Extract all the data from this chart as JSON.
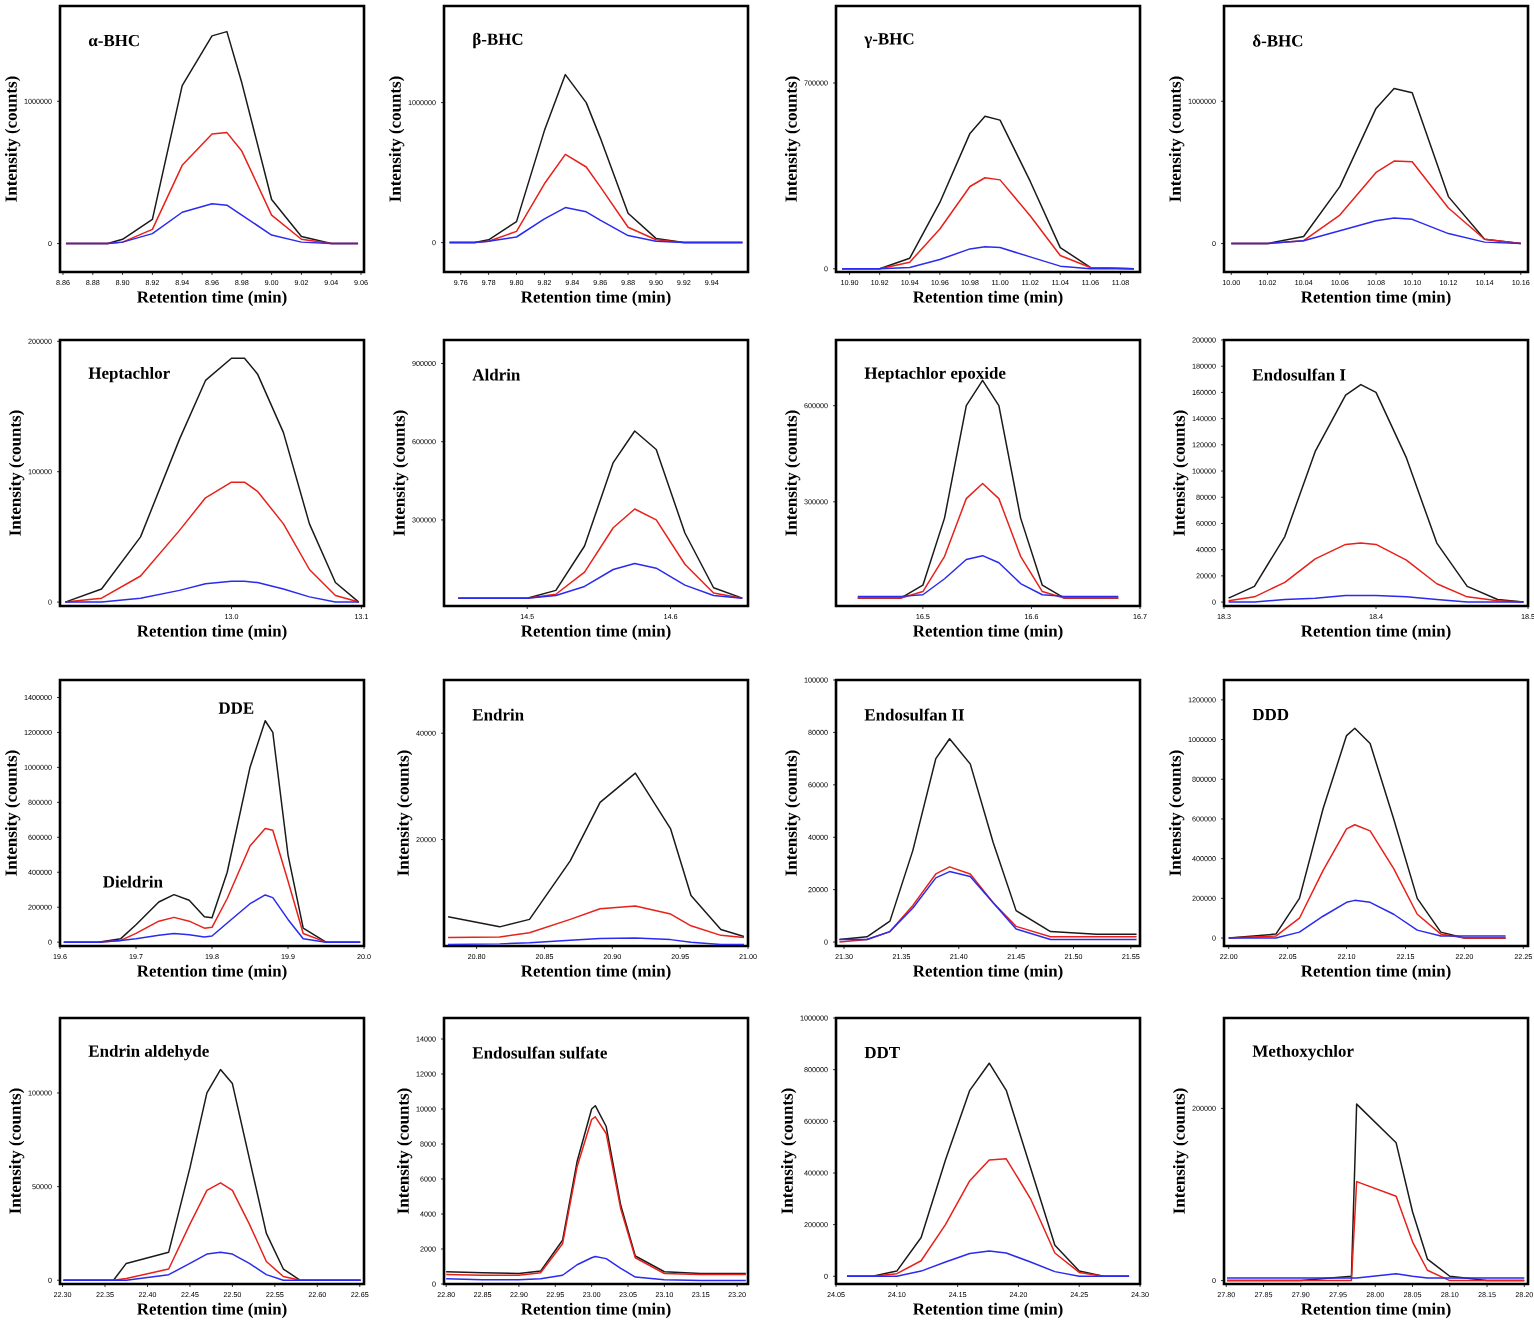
{
  "chart_data": [
    {
      "type": "line",
      "title": "α-BHC",
      "xlabel": "Retention time (min)",
      "ylabel": "Intensity (counts)",
      "xlim": [
        8.858,
        9.062
      ],
      "xticks": [
        8.86,
        8.88,
        {
          "value": 8.9,
          "label": "8.90"
        },
        8.92,
        8.94,
        8.96,
        8.98,
        {
          "value": 9,
          "label": "9.00"
        },
        9.02,
        9.04,
        9.06
      ],
      "ylim": [
        -200000,
        1670000
      ],
      "yticks": [
        0,
        1000000
      ],
      "x": [
        8.862,
        8.89,
        8.9,
        8.92,
        8.94,
        8.96,
        8.97,
        8.98,
        9.0,
        9.02,
        9.04,
        9.058
      ],
      "series": [
        {
          "color": "#1a1a1a",
          "values": [
            0,
            0,
            30000,
            170000,
            1110000,
            1460000,
            1490000,
            1130000,
            310000,
            50000,
            0,
            0
          ]
        },
        {
          "color": "#e8201a",
          "values": [
            0,
            0,
            10000,
            100000,
            550000,
            770000,
            780000,
            650000,
            200000,
            30000,
            0,
            0
          ]
        },
        {
          "color": "#2a2af0",
          "values": [
            0,
            0,
            10000,
            70000,
            220000,
            280000,
            270000,
            200000,
            60000,
            10000,
            0,
            0
          ]
        }
      ]
    },
    {
      "type": "line",
      "title": "β-BHC",
      "xlabel": "Retention time (min)",
      "ylabel": "Intensity (counts)",
      "xlim": [
        9.748,
        9.966
      ],
      "xticks": [
        9.76,
        9.78,
        {
          "value": 9.8,
          "label": "9.80"
        },
        9.82,
        9.84,
        9.86,
        9.88,
        {
          "value": 9.9,
          "label": "9.90"
        },
        9.92,
        9.94
      ],
      "ylim": [
        -210000,
        1690000
      ],
      "yticks": [
        0,
        1000000
      ],
      "x": [
        9.752,
        9.77,
        9.78,
        9.8,
        9.82,
        9.835,
        9.85,
        9.86,
        9.88,
        9.9,
        9.92,
        9.962
      ],
      "series": [
        {
          "color": "#1a1a1a",
          "values": [
            0,
            0,
            20000,
            150000,
            800000,
            1200000,
            1000000,
            750000,
            210000,
            30000,
            0,
            0
          ]
        },
        {
          "color": "#e8201a",
          "values": [
            0,
            0,
            10000,
            80000,
            420000,
            630000,
            540000,
            400000,
            110000,
            20000,
            0,
            0
          ]
        },
        {
          "color": "#2a2af0",
          "values": [
            0,
            0,
            10000,
            40000,
            170000,
            250000,
            220000,
            160000,
            50000,
            10000,
            0,
            0
          ]
        }
      ]
    },
    {
      "type": "line",
      "title": "γ-BHC",
      "xlabel": "Retention time (min)",
      "ylabel": "Intensity (counts)",
      "xlim": [
        10.891,
        11.093
      ],
      "xticks": [
        {
          "value": 10.9,
          "label": "10.90"
        },
        10.92,
        10.94,
        10.96,
        10.98,
        {
          "value": 11,
          "label": "11.00"
        },
        11.02,
        11.04,
        11.06,
        11.08
      ],
      "ylim": [
        -12000,
        990000
      ],
      "yticks": [
        0,
        700000
      ],
      "x": [
        10.895,
        10.92,
        10.94,
        10.96,
        10.98,
        10.99,
        11.0,
        11.02,
        11.04,
        11.06,
        11.089
      ],
      "series": [
        {
          "color": "#1a1a1a",
          "values": [
            0,
            0,
            40000,
            250000,
            510000,
            575000,
            560000,
            330000,
            80000,
            5000,
            0
          ]
        },
        {
          "color": "#e8201a",
          "values": [
            0,
            0,
            25000,
            150000,
            310000,
            343000,
            335000,
            200000,
            50000,
            5000,
            0
          ]
        },
        {
          "color": "#2a2af0",
          "values": [
            0,
            0,
            5000,
            35000,
            75000,
            83000,
            80000,
            45000,
            10000,
            0,
            0
          ]
        }
      ]
    },
    {
      "type": "line",
      "title": "δ-BHC",
      "xlabel": "Retention time (min)",
      "ylabel": "Intensity (counts)",
      "xlim": [
        9.996,
        10.164
      ],
      "xticks": [
        {
          "value": 10,
          "label": "10.00"
        },
        10.02,
        10.04,
        10.06,
        10.08,
        {
          "value": 10.1,
          "label": "10.10"
        },
        10.12,
        10.14,
        10.16
      ],
      "ylim": [
        -200000,
        1670000
      ],
      "yticks": [
        0,
        1000000
      ],
      "x": [
        10.0,
        10.02,
        10.04,
        10.06,
        10.08,
        10.09,
        10.1,
        10.12,
        10.14,
        10.16
      ],
      "series": [
        {
          "color": "#1a1a1a",
          "values": [
            0,
            0,
            50000,
            400000,
            950000,
            1090000,
            1060000,
            330000,
            30000,
            0
          ]
        },
        {
          "color": "#e8201a",
          "values": [
            0,
            0,
            20000,
            200000,
            500000,
            580000,
            575000,
            250000,
            30000,
            0
          ]
        },
        {
          "color": "#2a2af0",
          "values": [
            0,
            0,
            20000,
            90000,
            160000,
            180000,
            170000,
            70000,
            10000,
            0
          ]
        }
      ]
    },
    {
      "type": "line",
      "title": "Heptachlor",
      "xlabel": "Retention time (min)",
      "ylabel": "Intensity (counts)",
      "xlim": [
        12.868,
        13.102
      ],
      "xticks": [
        {
          "value": 13,
          "label": "13.0"
        },
        13.1
      ],
      "ylim": [
        -3000,
        201000
      ],
      "yticks": [
        0,
        100000,
        200000
      ],
      "x": [
        12.872,
        12.9,
        12.93,
        12.96,
        12.98,
        13.0,
        13.01,
        13.02,
        13.04,
        13.06,
        13.08,
        13.098
      ],
      "series": [
        {
          "color": "#1a1a1a",
          "values": [
            0,
            10000,
            50000,
            125000,
            170000,
            187000,
            187000,
            175000,
            130000,
            60000,
            15000,
            0
          ]
        },
        {
          "color": "#e8201a",
          "values": [
            0,
            3000,
            20000,
            55000,
            80000,
            92000,
            92000,
            85000,
            60000,
            25000,
            5000,
            0
          ]
        },
        {
          "color": "#2a2af0",
          "values": [
            0,
            0,
            3000,
            9000,
            14000,
            16000,
            16000,
            15000,
            10000,
            4000,
            0,
            0
          ]
        }
      ]
    },
    {
      "type": "line",
      "title": "Aldrin",
      "xlabel": "Retention time (min)",
      "ylabel": "Intensity (counts)",
      "xlim": [
        14.442,
        14.654
      ],
      "xticks": [
        14.5,
        14.6
      ],
      "ylim": [
        -30000,
        990000
      ],
      "yticks": [
        300000,
        600000,
        900000
      ],
      "x": [
        14.452,
        14.5,
        14.52,
        14.54,
        14.56,
        14.575,
        14.59,
        14.61,
        14.63,
        14.65
      ],
      "series": [
        {
          "color": "#1a1a1a",
          "values": [
            0,
            0,
            30000,
            200000,
            520000,
            641000,
            570000,
            250000,
            40000,
            0
          ]
        },
        {
          "color": "#e8201a",
          "values": [
            0,
            0,
            15000,
            100000,
            270000,
            342000,
            300000,
            130000,
            20000,
            0
          ]
        },
        {
          "color": "#2a2af0",
          "values": [
            0,
            0,
            10000,
            45000,
            110000,
            133000,
            115000,
            50000,
            10000,
            0
          ]
        }
      ]
    },
    {
      "type": "line",
      "title": "Heptachlor epoxide",
      "xlabel": "Retention time (min)",
      "ylabel": "Intensity (counts)",
      "xlim": [
        16.42,
        16.7
      ],
      "xticks": [
        16.5,
        16.6,
        16.7
      ],
      "ylim": [
        -25000,
        805000
      ],
      "yticks": [
        300000,
        600000
      ],
      "x": [
        16.44,
        16.48,
        16.5,
        16.52,
        16.54,
        16.555,
        16.57,
        16.59,
        16.61,
        16.63,
        16.68
      ],
      "series": [
        {
          "color": "#1a1a1a",
          "values": [
            0,
            0,
            40000,
            250000,
            600000,
            679000,
            600000,
            250000,
            40000,
            0,
            0
          ]
        },
        {
          "color": "#e8201a",
          "values": [
            0,
            0,
            20000,
            130000,
            310000,
            357000,
            310000,
            130000,
            20000,
            0,
            0
          ]
        },
        {
          "color": "#2a2af0",
          "values": [
            5000,
            5000,
            10000,
            60000,
            120000,
            132000,
            110000,
            45000,
            10000,
            5000,
            5000
          ]
        }
      ]
    },
    {
      "type": "line",
      "title": "Endosulfan I",
      "xlabel": "Retention time (min)",
      "ylabel": "Intensity (counts)",
      "xlim": [
        18.3,
        18.5
      ],
      "xticks": [
        18.3,
        18.4,
        18.5
      ],
      "ylim": [
        -3000,
        200000
      ],
      "yticks": [
        0,
        20000,
        40000,
        60000,
        80000,
        100000,
        120000,
        140000,
        160000,
        180000,
        200000
      ],
      "x": [
        18.303,
        18.32,
        18.34,
        18.36,
        18.38,
        18.39,
        18.4,
        18.42,
        18.44,
        18.46,
        18.48,
        18.497
      ],
      "series": [
        {
          "color": "#1a1a1a",
          "values": [
            3000,
            12000,
            50000,
            115000,
            158000,
            166000,
            160000,
            110000,
            45000,
            12000,
            2000,
            0
          ]
        },
        {
          "color": "#e8201a",
          "values": [
            1000,
            4000,
            15000,
            33000,
            44000,
            45000,
            44000,
            32000,
            14000,
            4000,
            1000,
            0
          ]
        },
        {
          "color": "#2a2af0",
          "values": [
            0,
            0,
            2000,
            3000,
            5000,
            5000,
            5000,
            4000,
            2000,
            0,
            0,
            0
          ]
        }
      ]
    },
    {
      "type": "line",
      "xlabel": "Retention time (min)",
      "ylabel": "Intensity (counts)",
      "xlim": [
        19.6,
        20.0
      ],
      "xticks": [
        19.6,
        19.7,
        19.8,
        19.9,
        {
          "value": 20,
          "label": "20.0"
        }
      ],
      "ylim": [
        -22000,
        1500000
      ],
      "yticks": [
        0,
        200000,
        400000,
        600000,
        800000,
        1000000,
        1200000,
        1400000
      ],
      "x": [
        19.605,
        19.65,
        19.68,
        19.7,
        19.73,
        19.75,
        19.77,
        19.79,
        19.8,
        19.82,
        19.85,
        19.87,
        19.88,
        19.9,
        19.92,
        19.95,
        19.995
      ],
      "series": [
        {
          "color": "#1a1a1a",
          "values": [
            0,
            0,
            20000,
            100000,
            230000,
            272000,
            240000,
            145000,
            140000,
            400000,
            1000000,
            1267000,
            1200000,
            500000,
            80000,
            0,
            0
          ]
        },
        {
          "color": "#e8201a",
          "values": [
            0,
            0,
            10000,
            50000,
            120000,
            142000,
            120000,
            80000,
            85000,
            250000,
            550000,
            650000,
            640000,
            350000,
            50000,
            0,
            0
          ]
        },
        {
          "color": "#2a2af0",
          "values": [
            0,
            0,
            10000,
            20000,
            40000,
            50000,
            42000,
            30000,
            35000,
            110000,
            220000,
            270000,
            255000,
            130000,
            20000,
            0,
            0
          ]
        }
      ],
      "annotations": [
        {
          "text": "Dieldrin",
          "x": 19.75,
          "y": 272000
        },
        {
          "text": "DDE",
          "x": 19.87,
          "y": 1267000
        }
      ]
    },
    {
      "type": "line",
      "title": "Endrin",
      "xlabel": "Retention time (min)",
      "ylabel": "Intensity (counts)",
      "xlim": [
        20.776,
        21.0
      ],
      "xticks": [
        {
          "value": 20.8,
          "label": "20.80"
        },
        20.85,
        {
          "value": 20.9,
          "label": "20.90"
        },
        20.95,
        {
          "value": 21,
          "label": "21.00"
        }
      ],
      "ylim": [
        0,
        50000
      ],
      "yticks": [
        20000,
        40000
      ],
      "x": [
        20.779,
        20.817,
        20.839,
        20.869,
        20.891,
        20.917,
        20.943,
        20.958,
        20.98,
        20.997
      ],
      "series": [
        {
          "color": "#1a1a1a",
          "values": [
            5500,
            3600,
            5000,
            16000,
            27000,
            32500,
            22000,
            9500,
            3100,
            1800
          ]
        },
        {
          "color": "#e8201a",
          "values": [
            1600,
            1700,
            2500,
            5000,
            7000,
            7500,
            6000,
            3800,
            2000,
            1600
          ]
        },
        {
          "color": "#2a2af0",
          "values": [
            300,
            400,
            600,
            1100,
            1400,
            1500,
            1200,
            700,
            300,
            300
          ]
        }
      ]
    },
    {
      "type": "line",
      "title": "Endosulfan II",
      "xlabel": "Retention time (min)",
      "ylabel": "Intensity (counts)",
      "xlim": [
        21.293,
        21.558
      ],
      "xticks": [
        {
          "value": 21.3,
          "label": "21.30"
        },
        21.35,
        {
          "value": 21.4,
          "label": "21.40"
        },
        21.45,
        {
          "value": 21.5,
          "label": "21.50"
        },
        21.55
      ],
      "ylim": [
        -1500,
        100000
      ],
      "yticks": [
        0,
        20000,
        40000,
        60000,
        80000,
        100000
      ],
      "x": [
        21.296,
        21.32,
        21.34,
        21.36,
        21.38,
        21.392,
        21.41,
        21.43,
        21.45,
        21.48,
        21.52,
        21.555
      ],
      "series": [
        {
          "color": "#1a1a1a",
          "values": [
            1000,
            2000,
            8000,
            35000,
            70000,
            77600,
            68000,
            38000,
            12000,
            4000,
            3000,
            3000
          ]
        },
        {
          "color": "#e8201a",
          "values": [
            0,
            1000,
            4000,
            14000,
            26000,
            28700,
            26000,
            15000,
            6000,
            2000,
            2000,
            2000
          ]
        },
        {
          "color": "#2a2af0",
          "values": [
            1000,
            1000,
            4000,
            13000,
            24500,
            26900,
            25000,
            15000,
            5000,
            1000,
            1000,
            1000
          ]
        }
      ]
    },
    {
      "type": "line",
      "title": "DDD",
      "xlabel": "Retention time (min)",
      "ylabel": "Intensity (counts)",
      "xlim": [
        21.996,
        22.254
      ],
      "xticks": [
        {
          "value": 22,
          "label": "22.00"
        },
        22.05,
        {
          "value": 22.1,
          "label": "22.10"
        },
        22.15,
        {
          "value": 22.2,
          "label": "22.20"
        },
        22.25
      ],
      "ylim": [
        -40000,
        1300000
      ],
      "yticks": [
        0,
        200000,
        400000,
        600000,
        800000,
        1000000,
        1200000
      ],
      "x": [
        22.0,
        22.04,
        22.06,
        22.08,
        22.1,
        22.107,
        22.12,
        22.14,
        22.16,
        22.18,
        22.2,
        22.235
      ],
      "series": [
        {
          "color": "#1a1a1a",
          "values": [
            0,
            20000,
            200000,
            650000,
            1020000,
            1057000,
            980000,
            600000,
            200000,
            30000,
            0,
            0
          ]
        },
        {
          "color": "#e8201a",
          "values": [
            0,
            10000,
            100000,
            340000,
            550000,
            571000,
            540000,
            350000,
            120000,
            20000,
            0,
            0
          ]
        },
        {
          "color": "#2a2af0",
          "values": [
            0,
            0,
            30000,
            110000,
            180000,
            190000,
            180000,
            120000,
            40000,
            10000,
            10000,
            10000
          ]
        }
      ]
    },
    {
      "type": "line",
      "title": "Endrin aldehyde",
      "xlabel": "Retention time (min)",
      "ylabel": "Intensity (counts)",
      "xlim": [
        22.297,
        22.655
      ],
      "xticks": [
        {
          "value": 22.3,
          "label": "22.30"
        },
        22.35,
        {
          "value": 22.4,
          "label": "22.40"
        },
        22.45,
        {
          "value": 22.5,
          "label": "22.50"
        },
        22.55,
        {
          "value": 22.6,
          "label": "22.60"
        },
        22.65
      ],
      "ylim": [
        -2000,
        140000
      ],
      "yticks": [
        0,
        50000,
        100000
      ],
      "x": [
        22.301,
        22.36,
        22.375,
        22.425,
        22.45,
        22.47,
        22.486,
        22.5,
        22.52,
        22.54,
        22.56,
        22.58,
        22.651
      ],
      "series": [
        {
          "color": "#1a1a1a",
          "values": [
            0,
            0,
            9000,
            15000,
            60000,
            100000,
            112500,
            105000,
            65000,
            25000,
            6000,
            0,
            0
          ]
        },
        {
          "color": "#e8201a",
          "values": [
            0,
            0,
            1000,
            6000,
            30000,
            48000,
            52000,
            48000,
            30000,
            10000,
            2000,
            0,
            0
          ]
        },
        {
          "color": "#2a2af0",
          "values": [
            0,
            0,
            0,
            3000,
            9000,
            14000,
            15000,
            14000,
            9000,
            3000,
            0,
            0,
            0
          ]
        }
      ]
    },
    {
      "type": "line",
      "title": "Endosulfan sulfate",
      "xlabel": "Retention time (min)",
      "ylabel": "Intensity (counts)",
      "xlim": [
        22.797,
        23.215
      ],
      "xticks": [
        {
          "value": 22.8,
          "label": "22.80"
        },
        22.85,
        {
          "value": 22.9,
          "label": "22.90"
        },
        22.95,
        {
          "value": 23,
          "label": "23.00"
        },
        23.05,
        {
          "value": 23.1,
          "label": "23.10"
        },
        23.15,
        {
          "value": 23.2,
          "label": "23.20"
        }
      ],
      "ylim": [
        0,
        15200
      ],
      "yticks": [
        0,
        2000,
        4000,
        6000,
        8000,
        10000,
        12000,
        14000
      ],
      "x": [
        22.8,
        22.85,
        22.9,
        22.93,
        22.96,
        22.98,
        23.0,
        23.005,
        23.02,
        23.04,
        23.06,
        23.1,
        23.15,
        23.212
      ],
      "series": [
        {
          "color": "#1a1a1a",
          "values": [
            700,
            650,
            600,
            750,
            2500,
            7000,
            10000,
            10190,
            9000,
            4500,
            1600,
            700,
            600,
            600
          ]
        },
        {
          "color": "#e8201a",
          "values": [
            550,
            500,
            500,
            650,
            2300,
            6700,
            9400,
            9550,
            8600,
            4300,
            1500,
            600,
            550,
            550
          ]
        },
        {
          "color": "#2a2af0",
          "values": [
            300,
            250,
            250,
            300,
            500,
            1100,
            1500,
            1570,
            1450,
            900,
            400,
            250,
            200,
            200
          ]
        }
      ]
    },
    {
      "type": "line",
      "title": "DDT",
      "xlabel": "Retention time (min)",
      "ylabel": "Intensity (counts)",
      "xlim": [
        24.05,
        24.3
      ],
      "xticks": [
        24.05,
        {
          "value": 24.1,
          "label": "24.10"
        },
        24.15,
        {
          "value": 24.2,
          "label": "24.20"
        },
        24.25,
        {
          "value": 24.3,
          "label": "24.30"
        }
      ],
      "ylim": [
        -30000,
        1000000
      ],
      "yticks": [
        0,
        200000,
        400000,
        600000,
        800000,
        1000000
      ],
      "x": [
        24.059,
        24.08,
        24.1,
        24.12,
        24.14,
        24.16,
        24.176,
        24.19,
        24.21,
        24.23,
        24.25,
        24.27,
        24.291
      ],
      "series": [
        {
          "color": "#1a1a1a",
          "values": [
            0,
            0,
            20000,
            150000,
            450000,
            720000,
            825000,
            720000,
            420000,
            120000,
            20000,
            0,
            0
          ]
        },
        {
          "color": "#e8201a",
          "values": [
            0,
            0,
            10000,
            60000,
            200000,
            370000,
            450000,
            455000,
            300000,
            90000,
            15000,
            0,
            0
          ]
        },
        {
          "color": "#2a2af0",
          "values": [
            0,
            0,
            0,
            20000,
            55000,
            88000,
            97500,
            90000,
            55000,
            18000,
            0,
            0,
            0
          ]
        }
      ]
    },
    {
      "type": "line",
      "title": "Methoxychlor",
      "xlabel": "Retention time (min)",
      "ylabel": "Intensity (counts)",
      "xlim": [
        27.797,
        28.205
      ],
      "xticks": [
        {
          "value": 27.8,
          "label": "27.80"
        },
        27.85,
        {
          "value": 27.9,
          "label": "27.90"
        },
        27.95,
        {
          "value": 28,
          "label": "28.00"
        },
        28.05,
        {
          "value": 28.1,
          "label": "28.10"
        },
        28.15,
        {
          "value": 28.2,
          "label": "28.20"
        }
      ],
      "ylim": [
        -4000,
        305000
      ],
      "yticks": [
        0,
        200000
      ],
      "x": [
        27.801,
        27.9,
        27.968,
        27.975,
        28.028,
        28.05,
        28.07,
        28.1,
        28.15,
        28.2
      ],
      "series": [
        {
          "color": "#1a1a1a",
          "values": [
            0,
            0,
            5000,
            205000,
            160000,
            80000,
            25000,
            5000,
            0,
            0
          ]
        },
        {
          "color": "#e8201a",
          "values": [
            0,
            0,
            0,
            115000,
            98000,
            45000,
            12000,
            0,
            0,
            0
          ]
        },
        {
          "color": "#2a2af0",
          "values": [
            3000,
            3000,
            3000,
            3000,
            8000,
            5000,
            3000,
            3000,
            3000,
            3000
          ]
        }
      ]
    }
  ]
}
